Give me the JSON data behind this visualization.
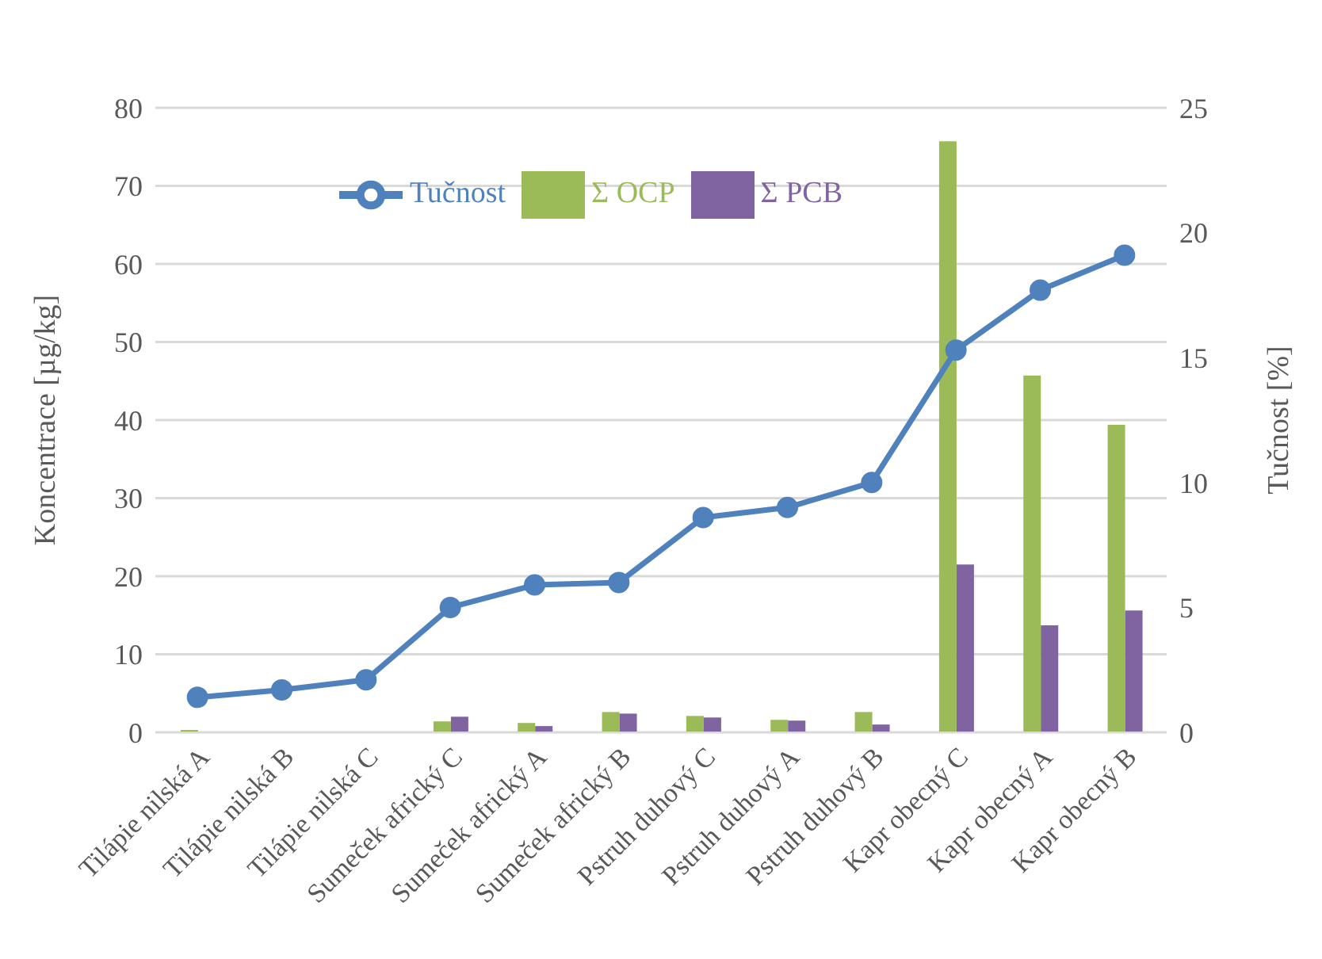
{
  "chart_data": {
    "type": "bar",
    "ylabel": "Koncentrace [µg/kg]",
    "y2label": "Tučnost [%]",
    "categories": [
      "Tilápie nilská A",
      "Tilápie nilská B",
      "Tilápie nilská C",
      "Sumeček africký C",
      "Sumeček africký A",
      "Sumeček africký B",
      "Pstruh duhový C",
      "Pstruh duhový A",
      "Pstruh duhový B",
      "Kapr obecný C",
      "Kapr obecný A",
      "Kapr obecný B"
    ],
    "series": [
      {
        "name": "Σ OCP",
        "color": "#9bbb59",
        "values": [
          0.3,
          0,
          0,
          1.4,
          1.2,
          2.6,
          2.1,
          1.6,
          2.6,
          75.7,
          45.7,
          39.4
        ]
      },
      {
        "name": "Σ PCB",
        "color": "#8064a2",
        "values": [
          0,
          0,
          0,
          2.0,
          0.8,
          2.4,
          1.9,
          1.5,
          1.0,
          21.5,
          13.7,
          15.6
        ]
      },
      {
        "name": "Tučnost",
        "type": "line",
        "axis": "y2",
        "color": "#4f81bd",
        "values": [
          1.4,
          1.7,
          2.1,
          5.0,
          5.9,
          6.0,
          8.6,
          9.0,
          10.0,
          15.3,
          17.7,
          19.1
        ]
      }
    ],
    "ylim": [
      0,
      80
    ],
    "yticks": [
      0,
      10,
      20,
      30,
      40,
      50,
      60,
      70,
      80
    ],
    "y2lim": [
      0,
      25
    ],
    "y2ticks": [
      0,
      5,
      10,
      15,
      20,
      25
    ],
    "grid": "y",
    "legend": "top",
    "marker": "circle"
  }
}
